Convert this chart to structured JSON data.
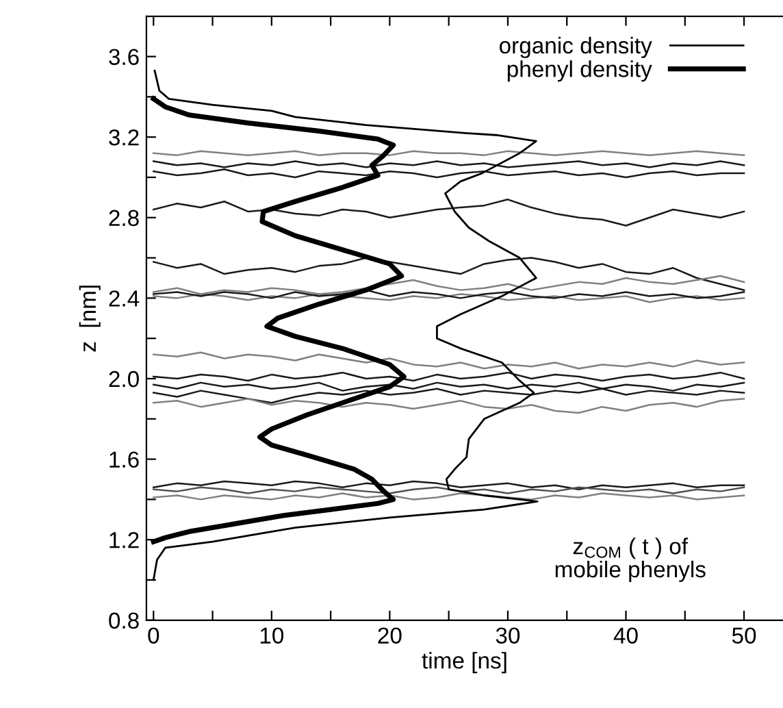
{
  "chart_data": {
    "type": "line",
    "xlabel": "time [ns]",
    "ylabel": "z  [nm]",
    "annotations": [
      "z$_{COM}$ ( t ) of\nmobile phenyls"
    ],
    "xlim": [
      -0.6,
      53.3
    ],
    "ylim": [
      0.8,
      3.8
    ],
    "xticks": [
      0,
      {
        "value": 5,
        "label": null
      },
      10,
      {
        "value": 15,
        "label": null
      },
      20,
      {
        "value": 25,
        "label": null
      },
      30,
      {
        "value": 35,
        "label": null
      },
      40,
      {
        "value": 45,
        "label": null
      },
      50
    ],
    "yticks": [
      0.8,
      {
        "value": 1.0,
        "label": null
      },
      1.2,
      {
        "value": 1.4,
        "label": null
      },
      1.6,
      {
        "value": 1.8,
        "label": null
      },
      {
        "value": 2.0,
        "label": "2.0"
      },
      {
        "value": 2.2,
        "label": null
      },
      2.4,
      {
        "value": 2.6,
        "label": null
      },
      2.8,
      {
        "value": 3.0,
        "label": null
      },
      3.2,
      {
        "value": 3.4,
        "label": null
      },
      3.6
    ],
    "grid": false,
    "legend": "top right",
    "line_style": "solid",
    "marker": "none",
    "x": [
      0,
      2,
      4,
      6,
      8,
      10,
      12,
      14,
      16,
      18,
      20,
      22,
      24,
      26,
      28,
      30,
      32,
      34,
      36,
      38,
      40,
      42,
      44,
      46,
      48,
      50
    ],
    "series": [
      {
        "color": "#808080",
        "values": [
          3.12,
          3.11,
          3.13,
          3.12,
          3.11,
          3.12,
          3.13,
          3.11,
          3.12,
          3.12,
          3.11,
          3.13,
          3.12,
          3.12,
          3.11,
          3.13,
          3.12,
          3.11,
          3.12,
          3.13,
          3.12,
          3.11,
          3.12,
          3.13,
          3.12,
          3.11
        ]
      },
      {
        "color": "#1a1a1a",
        "values": [
          3.08,
          3.06,
          3.07,
          3.05,
          3.07,
          3.06,
          3.08,
          3.06,
          3.07,
          3.05,
          3.07,
          3.06,
          3.08,
          3.06,
          3.07,
          3.05,
          3.06,
          3.07,
          3.08,
          3.06,
          3.07,
          3.05,
          3.07,
          3.06,
          3.08,
          3.06
        ]
      },
      {
        "color": "#1a1a1a",
        "values": [
          3.03,
          3.01,
          3.02,
          3.04,
          3.01,
          3.02,
          3.0,
          3.03,
          3.02,
          3.01,
          3.03,
          3.02,
          3.0,
          3.02,
          3.03,
          3.01,
          3.02,
          3.03,
          3.01,
          3.02,
          3.0,
          3.02,
          3.03,
          3.01,
          3.02,
          3.02
        ]
      },
      {
        "color": "#1a1a1a",
        "values": [
          2.84,
          2.87,
          2.85,
          2.88,
          2.83,
          2.84,
          2.82,
          2.81,
          2.84,
          2.83,
          2.8,
          2.82,
          2.84,
          2.85,
          2.86,
          2.89,
          2.85,
          2.82,
          2.8,
          2.79,
          2.76,
          2.8,
          2.84,
          2.82,
          2.8,
          2.83
        ]
      },
      {
        "color": "#1a1a1a",
        "values": [
          2.58,
          2.55,
          2.57,
          2.52,
          2.54,
          2.55,
          2.53,
          2.56,
          2.57,
          2.6,
          2.58,
          2.56,
          2.54,
          2.52,
          2.57,
          2.59,
          2.6,
          2.58,
          2.55,
          2.57,
          2.53,
          2.52,
          2.55,
          2.5,
          2.47,
          2.44
        ]
      },
      {
        "color": "#808080",
        "values": [
          2.43,
          2.45,
          2.42,
          2.44,
          2.43,
          2.45,
          2.44,
          2.42,
          2.43,
          2.45,
          2.47,
          2.49,
          2.46,
          2.44,
          2.45,
          2.47,
          2.44,
          2.46,
          2.48,
          2.47,
          2.5,
          2.48,
          2.47,
          2.49,
          2.51,
          2.48
        ]
      },
      {
        "color": "#808080",
        "values": [
          2.41,
          2.4,
          2.42,
          2.41,
          2.39,
          2.41,
          2.4,
          2.42,
          2.41,
          2.4,
          2.39,
          2.41,
          2.4,
          2.42,
          2.41,
          2.39,
          2.4,
          2.41,
          2.39,
          2.4,
          2.41,
          2.38,
          2.4,
          2.41,
          2.39,
          2.4
        ]
      },
      {
        "color": "#1a1a1a",
        "values": [
          2.42,
          2.43,
          2.41,
          2.43,
          2.42,
          2.4,
          2.43,
          2.41,
          2.42,
          2.44,
          2.41,
          2.43,
          2.42,
          2.4,
          2.42,
          2.43,
          2.41,
          2.4,
          2.42,
          2.41,
          2.43,
          2.41,
          2.42,
          2.4,
          2.41,
          2.43
        ]
      },
      {
        "color": "#808080",
        "values": [
          2.12,
          2.11,
          2.13,
          2.1,
          2.12,
          2.11,
          2.09,
          2.12,
          2.1,
          2.08,
          2.1,
          2.07,
          2.06,
          2.08,
          2.05,
          2.07,
          2.06,
          2.08,
          2.05,
          2.07,
          2.06,
          2.08,
          2.06,
          2.09,
          2.07,
          2.08
        ]
      },
      {
        "color": "#1a1a1a",
        "values": [
          2.01,
          2.0,
          2.02,
          2.01,
          1.99,
          2.02,
          2.0,
          2.01,
          2.03,
          2.0,
          2.01,
          1.99,
          2.02,
          2.0,
          2.01,
          2.03,
          2.0,
          2.02,
          2.01,
          1.99,
          2.01,
          2.02,
          2.0,
          2.01,
          2.03,
          2.0
        ]
      },
      {
        "color": "#1a1a1a",
        "values": [
          1.97,
          1.95,
          1.98,
          1.96,
          1.97,
          1.95,
          1.96,
          1.98,
          1.94,
          1.96,
          1.97,
          1.95,
          1.98,
          1.96,
          1.97,
          1.95,
          1.97,
          1.96,
          1.98,
          1.95,
          1.97,
          1.96,
          1.94,
          1.97,
          1.96,
          1.98
        ]
      },
      {
        "color": "#1a1a1a",
        "values": [
          1.93,
          1.91,
          1.94,
          1.92,
          1.9,
          1.88,
          1.91,
          1.93,
          1.92,
          1.94,
          1.92,
          1.93,
          1.95,
          1.92,
          1.94,
          1.93,
          1.92,
          1.94,
          1.93,
          1.95,
          1.92,
          1.94,
          1.93,
          1.92,
          1.94,
          1.93
        ]
      },
      {
        "color": "#808080",
        "values": [
          1.88,
          1.89,
          1.86,
          1.88,
          1.9,
          1.87,
          1.89,
          1.88,
          1.86,
          1.88,
          1.87,
          1.85,
          1.87,
          1.89,
          1.86,
          1.85,
          1.87,
          1.84,
          1.83,
          1.86,
          1.84,
          1.87,
          1.88,
          1.86,
          1.89,
          1.9
        ]
      },
      {
        "color": "#1a1a1a",
        "values": [
          1.46,
          1.48,
          1.47,
          1.49,
          1.48,
          1.47,
          1.49,
          1.48,
          1.46,
          1.48,
          1.47,
          1.49,
          1.48,
          1.46,
          1.47,
          1.48,
          1.46,
          1.47,
          1.45,
          1.47,
          1.46,
          1.47,
          1.48,
          1.46,
          1.47,
          1.47
        ]
      },
      {
        "color": "#505050",
        "values": [
          1.45,
          1.44,
          1.46,
          1.45,
          1.43,
          1.45,
          1.44,
          1.46,
          1.45,
          1.44,
          1.43,
          1.45,
          1.46,
          1.44,
          1.45,
          1.43,
          1.45,
          1.44,
          1.46,
          1.45,
          1.44,
          1.45,
          1.43,
          1.45,
          1.44,
          1.46
        ]
      },
      {
        "color": "#808080",
        "values": [
          1.41,
          1.42,
          1.4,
          1.42,
          1.41,
          1.4,
          1.42,
          1.41,
          1.43,
          1.41,
          1.42,
          1.4,
          1.41,
          1.43,
          1.42,
          1.41,
          1.4,
          1.42,
          1.41,
          1.43,
          1.42,
          1.41,
          1.42,
          1.4,
          1.41,
          1.42
        ]
      },
      {
        "name": "organic density",
        "color": "#000000",
        "x": [
          0,
          0.3,
          1,
          5,
          9,
          12,
          20,
          28,
          32.5,
          28,
          25,
          24.8,
          25.5,
          26.5,
          26.7,
          28,
          31,
          32.2,
          31,
          29.5,
          26,
          24,
          24,
          26,
          29.5,
          32.4,
          31,
          28.5,
          26.7,
          25.5,
          24.7,
          26,
          27.8,
          31,
          32.4,
          29,
          26.4,
          18,
          12,
          10,
          5,
          1.3,
          0.5,
          0.1
        ],
        "values": [
          1.0,
          1.1,
          1.16,
          1.19,
          1.23,
          1.26,
          1.31,
          1.35,
          1.39,
          1.42,
          1.45,
          1.5,
          1.55,
          1.61,
          1.7,
          1.8,
          1.88,
          1.93,
          1.99,
          2.08,
          2.15,
          2.2,
          2.26,
          2.32,
          2.41,
          2.5,
          2.6,
          2.68,
          2.75,
          2.83,
          2.92,
          2.98,
          3.02,
          3.12,
          3.18,
          3.21,
          3.22,
          3.26,
          3.3,
          3.33,
          3.36,
          3.39,
          3.43,
          3.53
        ]
      },
      {
        "name": "phenyl density",
        "color": "#000000",
        "x": [
          0,
          1,
          3,
          7,
          11,
          15,
          19,
          20.3,
          19.5,
          18.5,
          17,
          13,
          10,
          9,
          10,
          13,
          17,
          20,
          21.2,
          20,
          16,
          12,
          9.6,
          10.5,
          14,
          18,
          21,
          20,
          16,
          12,
          9.2,
          9.3,
          12,
          16,
          19,
          18.5,
          19.5,
          20.3,
          19,
          14,
          8,
          3,
          1,
          0
        ],
        "values": [
          1.19,
          1.21,
          1.24,
          1.28,
          1.32,
          1.35,
          1.38,
          1.4,
          1.44,
          1.5,
          1.55,
          1.62,
          1.67,
          1.71,
          1.75,
          1.82,
          1.9,
          1.96,
          2.01,
          2.07,
          2.15,
          2.21,
          2.26,
          2.3,
          2.37,
          2.44,
          2.51,
          2.57,
          2.64,
          2.71,
          2.78,
          2.83,
          2.88,
          2.95,
          3.01,
          3.06,
          3.11,
          3.16,
          3.19,
          3.23,
          3.27,
          3.31,
          3.35,
          3.39
        ]
      }
    ]
  }
}
